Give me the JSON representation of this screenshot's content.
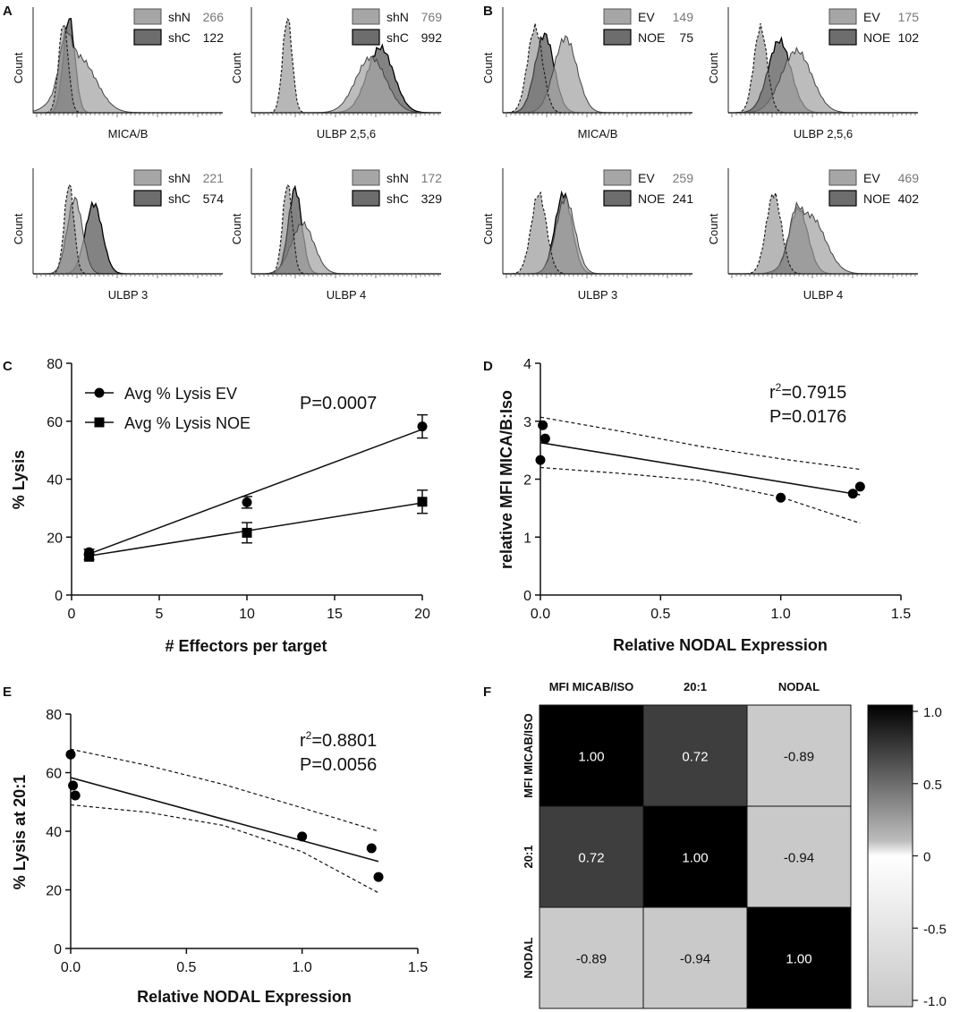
{
  "chart_data": {
    "panels": [
      {
        "label": "A",
        "type": "histogram",
        "plots": [
          {
            "xlabel": "MICA/B",
            "ylabel": "Count",
            "legend": [
              {
                "name": "shN",
                "value": "266"
              },
              {
                "name": "shC",
                "value": "122"
              }
            ]
          },
          {
            "xlabel": "ULBP 2,5,6",
            "ylabel": "Count",
            "legend": [
              {
                "name": "shN",
                "value": "769"
              },
              {
                "name": "shC",
                "value": "992"
              }
            ]
          },
          {
            "xlabel": "ULBP 3",
            "ylabel": "Count",
            "legend": [
              {
                "name": "shN",
                "value": "221"
              },
              {
                "name": "shC",
                "value": "574"
              }
            ]
          },
          {
            "xlabel": "ULBP 4",
            "ylabel": "Count",
            "legend": [
              {
                "name": "shN",
                "value": "172"
              },
              {
                "name": "shC",
                "value": "329"
              }
            ]
          }
        ]
      },
      {
        "label": "B",
        "type": "histogram",
        "plots": [
          {
            "xlabel": "MICA/B",
            "ylabel": "Count",
            "legend": [
              {
                "name": "EV",
                "value": "149"
              },
              {
                "name": "NOE",
                "value": "75"
              }
            ]
          },
          {
            "xlabel": "ULBP 2,5,6",
            "ylabel": "Count",
            "legend": [
              {
                "name": "EV",
                "value": "175"
              },
              {
                "name": "NOE",
                "value": "102"
              }
            ]
          },
          {
            "xlabel": "ULBP 3",
            "ylabel": "Count",
            "legend": [
              {
                "name": "EV",
                "value": "259"
              },
              {
                "name": "NOE",
                "value": "241"
              }
            ]
          },
          {
            "xlabel": "ULBP 4",
            "ylabel": "Count",
            "legend": [
              {
                "name": "EV",
                "value": "469"
              },
              {
                "name": "NOE",
                "value": "402"
              }
            ]
          }
        ]
      },
      {
        "label": "C",
        "type": "line",
        "xlabel": "# Effectors per target",
        "ylabel": "% Lysis",
        "xlim": [
          0,
          20
        ],
        "ylim": [
          0,
          80
        ],
        "xticks": [
          0,
          5,
          10,
          15,
          20
        ],
        "yticks": [
          0,
          20,
          40,
          60,
          80
        ],
        "annotation": "P=0.0007",
        "series": [
          {
            "name": "Avg % Lysis EV",
            "marker": "circle",
            "x": [
              1,
              10,
              20
            ],
            "y": [
              14.8,
              32,
              58.2
            ],
            "err": [
              1,
              2,
              4
            ],
            "fit": [
              [
                1,
                14.2
              ],
              [
                20,
                57.2
              ]
            ]
          },
          {
            "name": "Avg % Lysis NOE",
            "marker": "square",
            "x": [
              1,
              10,
              20
            ],
            "y": [
              13.2,
              21.5,
              32.2
            ],
            "err": [
              1,
              3.5,
              4
            ],
            "fit": [
              [
                1,
                13.5
              ],
              [
                20,
                31.8
              ]
            ]
          }
        ]
      },
      {
        "label": "D",
        "type": "scatter",
        "xlabel": "Relative NODAL Expression",
        "ylabel": "relative MFI MICA/B:Iso",
        "xlim": [
          0,
          1.5
        ],
        "ylim": [
          0,
          4
        ],
        "xticks": [
          "0.0",
          "0.5",
          "1.0",
          "1.5"
        ],
        "yticks": [
          "0",
          "1",
          "2",
          "3",
          "4"
        ],
        "annotation_r2_prefix": "r",
        "annotation_r2_exp": "2",
        "annotation_r2_value": "=0.7915",
        "annotation_p": "P=0.0176",
        "points": [
          [
            0.0,
            2.33
          ],
          [
            0.01,
            2.93
          ],
          [
            0.02,
            2.7
          ],
          [
            1.0,
            1.68
          ],
          [
            1.3,
            1.75
          ],
          [
            1.33,
            1.87
          ]
        ],
        "fit": [
          [
            0,
            2.63
          ],
          [
            1.33,
            1.73
          ]
        ],
        "ci_upper": [
          [
            0,
            3.07
          ],
          [
            0.33,
            2.83
          ],
          [
            0.66,
            2.57
          ],
          [
            1.0,
            2.35
          ],
          [
            1.33,
            2.17
          ]
        ],
        "ci_lower": [
          [
            0,
            2.2
          ],
          [
            0.33,
            2.1
          ],
          [
            0.66,
            1.98
          ],
          [
            1.0,
            1.69
          ],
          [
            1.33,
            1.24
          ]
        ]
      },
      {
        "label": "E",
        "type": "scatter",
        "xlabel": "Relative NODAL Expression",
        "ylabel": "% Lysis at 20:1",
        "xlim": [
          0,
          1.5
        ],
        "ylim": [
          0,
          80
        ],
        "xticks": [
          "0.0",
          "0.5",
          "1.0",
          "1.5"
        ],
        "yticks": [
          "0",
          "20",
          "40",
          "60",
          "80"
        ],
        "annotation_r2_prefix": "r",
        "annotation_r2_exp": "2",
        "annotation_r2_value": "=0.8801",
        "annotation_p": "P=0.0056",
        "points": [
          [
            0.0,
            66.2
          ],
          [
            0.01,
            55.6
          ],
          [
            0.02,
            52.2
          ],
          [
            1.0,
            38.2
          ],
          [
            1.3,
            34.2
          ],
          [
            1.33,
            24.4
          ]
        ],
        "fit": [
          [
            0,
            58.3
          ],
          [
            1.33,
            29.7
          ]
        ],
        "ci_upper": [
          [
            0,
            68
          ],
          [
            0.33,
            62.5
          ],
          [
            0.66,
            56
          ],
          [
            1.0,
            48
          ],
          [
            1.33,
            40
          ]
        ],
        "ci_lower": [
          [
            0,
            49
          ],
          [
            0.33,
            46.5
          ],
          [
            0.66,
            42
          ],
          [
            1.0,
            33
          ],
          [
            1.33,
            19
          ]
        ]
      },
      {
        "label": "F",
        "type": "heatmap",
        "col_labels": [
          "MFI MICAB/ISO",
          "20:1",
          "NODAL"
        ],
        "row_labels": [
          "MFI MICAB/ISO",
          "20:1",
          "NODAL"
        ],
        "matrix": [
          [
            1.0,
            0.72,
            -0.89
          ],
          [
            0.72,
            1.0,
            -0.94
          ],
          [
            -0.89,
            -0.94,
            1.0
          ]
        ],
        "cell_text": [
          [
            "1.00",
            "0.72",
            "-0.89"
          ],
          [
            "0.72",
            "1.00",
            "-0.94"
          ],
          [
            "-0.89",
            "-0.94",
            "1.00"
          ]
        ],
        "colorbar_ticks": [
          "1.0",
          "0.5",
          "0",
          "-0.5",
          "-1.0"
        ],
        "colorbar_range": [
          -1,
          1
        ]
      }
    ]
  }
}
